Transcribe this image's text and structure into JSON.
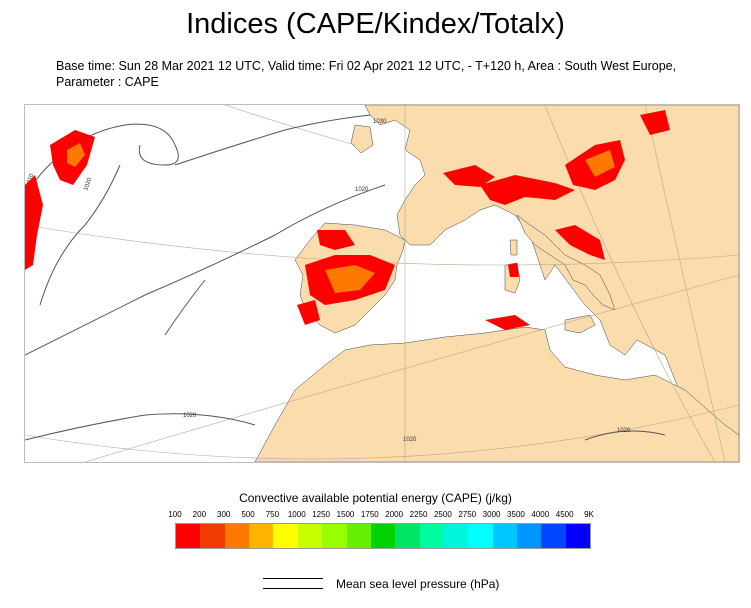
{
  "title": "Indices (CAPE/Kindex/Totalx)",
  "subtitle": "Base time: Sun 28 Mar 2021 12 UTC, Valid time: Fri 02 Apr 2021 12 UTC, - T+120 h, Area : South West Europe, Parameter : CAPE",
  "map": {
    "isobar_labels": [
      "1030",
      "1010",
      "1020",
      "1020",
      "1020",
      "1020",
      "1020"
    ],
    "land_color": "#fbdcad",
    "sea_color": "#ffffff",
    "isobar_color": "#555555"
  },
  "legend": {
    "title": "Convective available potential energy (CAPE) (j/kg)",
    "ticks": [
      "100",
      "200",
      "300",
      "500",
      "750",
      "1000",
      "1250",
      "1500",
      "1750",
      "2000",
      "2250",
      "2500",
      "2750",
      "3000",
      "3500",
      "4000",
      "4500",
      "9K"
    ],
    "colors": [
      "#ff0000",
      "#f03c00",
      "#ff7800",
      "#ffb400",
      "#ffff00",
      "#c8ff00",
      "#96ff00",
      "#64f000",
      "#00d200",
      "#00e664",
      "#00faa0",
      "#00f5dc",
      "#00ffff",
      "#00c8ff",
      "#0096ff",
      "#0046ff",
      "#0000ff"
    ]
  },
  "mslp_legend": {
    "label": "Mean sea level pressure (hPa)"
  }
}
